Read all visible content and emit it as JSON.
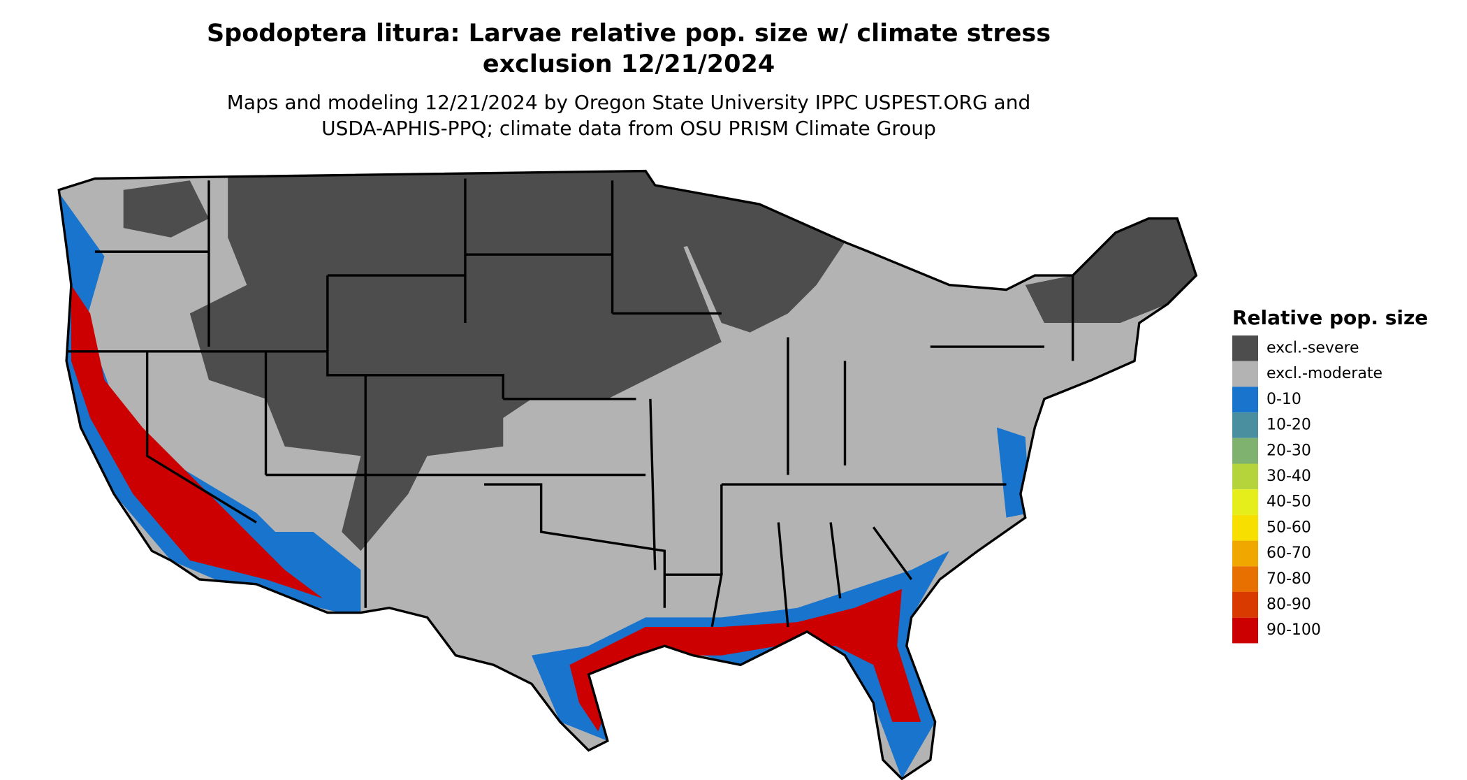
{
  "header": {
    "title_lines": [
      "Spodoptera litura: Larvae relative pop. size w/ climate stress",
      "exclusion 12/21/2024"
    ],
    "subtitle_lines": [
      "Maps and modeling 12/21/2024 by Oregon State University IPPC USPEST.ORG and",
      "USDA-APHIS-PPQ; climate data from OSU PRISM Climate Group"
    ]
  },
  "legend": {
    "title": "Relative pop. size",
    "items": [
      {
        "label": "excl.-severe",
        "color": "#4d4d4d"
      },
      {
        "label": "excl.-moderate",
        "color": "#b3b3b3"
      },
      {
        "label": "0-10",
        "color": "#1874cd"
      },
      {
        "label": "10-20",
        "color": "#4a8fa0"
      },
      {
        "label": "20-30",
        "color": "#7fb26e"
      },
      {
        "label": "30-40",
        "color": "#b5d43c"
      },
      {
        "label": "40-50",
        "color": "#e5ee1a"
      },
      {
        "label": "50-60",
        "color": "#f7e000"
      },
      {
        "label": "60-70",
        "color": "#f0a800"
      },
      {
        "label": "70-80",
        "color": "#e87000"
      },
      {
        "label": "80-90",
        "color": "#d83a00"
      },
      {
        "label": "90-100",
        "color": "#cc0000"
      }
    ]
  }
}
